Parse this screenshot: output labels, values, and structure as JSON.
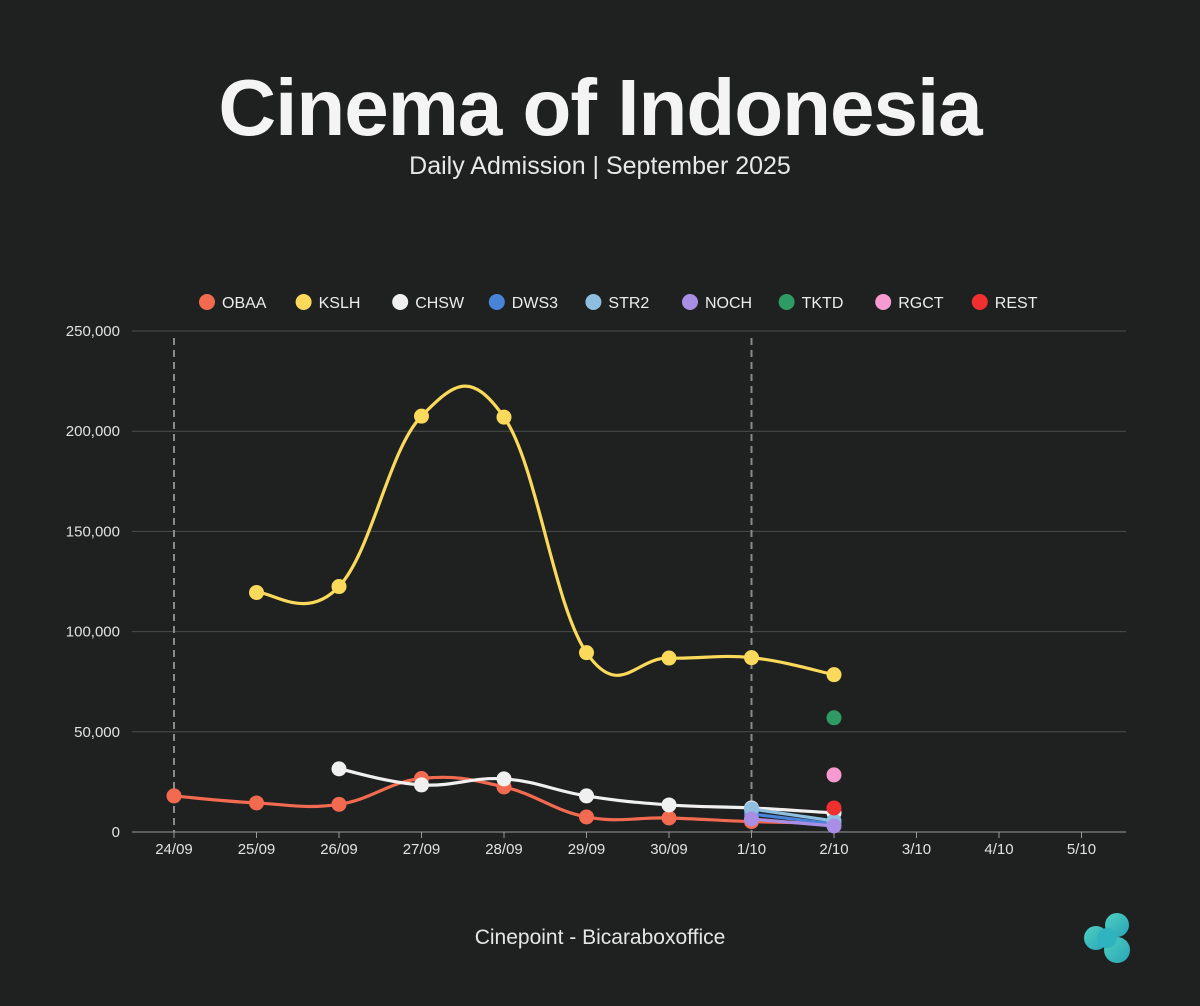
{
  "header": {
    "title": "Cinema of Indonesia",
    "subtitle": "Daily Admission | September 2025"
  },
  "footer": {
    "source": "Cinepoint - Bicaraboxoffice",
    "logo_icon": "cloud-logo-icon"
  },
  "chart_data": {
    "type": "line",
    "title": "Cinema of Indonesia",
    "subtitle": "Daily Admission | September 2025",
    "xlabel": "",
    "ylabel": "",
    "categories": [
      "24/09",
      "25/09",
      "26/09",
      "27/09",
      "28/09",
      "29/09",
      "30/09",
      "1/10",
      "2/10",
      "3/10",
      "4/10",
      "5/10"
    ],
    "ylim": [
      0,
      250000
    ],
    "yticks": [
      0,
      50000,
      100000,
      150000,
      200000,
      250000
    ],
    "ytick_labels": [
      "0",
      "50,000",
      "100,000",
      "150,000",
      "200,000",
      "250,000"
    ],
    "grid": true,
    "legend_position": "top",
    "vertical_markers": [
      "24/09",
      "1/10"
    ],
    "series": [
      {
        "name": "OBAA",
        "color": "#f26b50",
        "values": [
          18000,
          14500,
          13800,
          26700,
          22500,
          7500,
          7000,
          5200,
          4500,
          null,
          null,
          null
        ]
      },
      {
        "name": "KSLH",
        "color": "#fbd95a",
        "values": [
          null,
          119500,
          122500,
          207500,
          207000,
          89500,
          86800,
          87000,
          78500,
          null,
          null,
          null
        ]
      },
      {
        "name": "CHSW",
        "color": "#f0f0f0",
        "values": [
          null,
          null,
          31500,
          23500,
          26500,
          18000,
          13500,
          12000,
          9500,
          null,
          null,
          null
        ]
      },
      {
        "name": "DWS3",
        "color": "#4a84d9",
        "values": [
          null,
          null,
          null,
          null,
          null,
          null,
          null,
          9000,
          4000,
          null,
          null,
          null
        ]
      },
      {
        "name": "STR2",
        "color": "#8ebfe0",
        "values": [
          null,
          null,
          null,
          null,
          null,
          null,
          null,
          11500,
          5500,
          null,
          null,
          null
        ]
      },
      {
        "name": "NOCH",
        "color": "#a98ee6",
        "values": [
          null,
          null,
          null,
          null,
          null,
          null,
          null,
          6500,
          3000,
          null,
          null,
          null
        ]
      },
      {
        "name": "TKTD",
        "color": "#2e9a64",
        "values": [
          null,
          null,
          null,
          null,
          null,
          null,
          null,
          null,
          57000,
          null,
          null,
          null
        ]
      },
      {
        "name": "RGCT",
        "color": "#f79ad1",
        "values": [
          null,
          null,
          null,
          null,
          null,
          null,
          null,
          null,
          28500,
          null,
          null,
          null
        ]
      },
      {
        "name": "REST",
        "color": "#f03030",
        "values": [
          null,
          null,
          null,
          null,
          null,
          null,
          null,
          null,
          12000,
          null,
          null,
          null
        ]
      }
    ]
  }
}
